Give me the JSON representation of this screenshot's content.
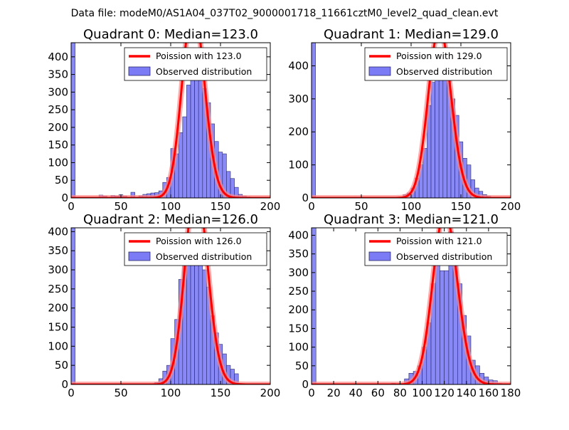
{
  "suptitle": "Data file: modeM0/AS1A04_037T02_9000001718_11661cztM0_level2_quad_clean.evt",
  "colors": {
    "bars": "#7b7bf5",
    "bar_edge": "#2a2a6e",
    "poisson": "#ff0000",
    "poisson_shadow": "#ff8a8a"
  },
  "chart_data": [
    {
      "type": "bar",
      "title": "Quadrant 0: Median=123.0",
      "xlim": [
        0,
        200
      ],
      "ylim": [
        0,
        440
      ],
      "xticks": [
        0,
        50,
        100,
        150,
        200
      ],
      "yticks": [
        0,
        50,
        100,
        150,
        200,
        250,
        300,
        350,
        400
      ],
      "legend_position": "top-right",
      "line_label": "Poission with 123.0",
      "bar_label": "Observed distribution",
      "median": 123.0,
      "bin_width": 4,
      "bins": [
        [
          0,
          440
        ],
        [
          28,
          8
        ],
        [
          32,
          5
        ],
        [
          40,
          7
        ],
        [
          44,
          5
        ],
        [
          48,
          9
        ],
        [
          52,
          5
        ],
        [
          60,
          16
        ],
        [
          68,
          6
        ],
        [
          72,
          10
        ],
        [
          76,
          12
        ],
        [
          80,
          14
        ],
        [
          84,
          15
        ],
        [
          88,
          20
        ],
        [
          92,
          44
        ],
        [
          96,
          58
        ],
        [
          100,
          140
        ],
        [
          104,
          125
        ],
        [
          108,
          185
        ],
        [
          112,
          230
        ],
        [
          116,
          320
        ],
        [
          120,
          390
        ],
        [
          124,
          410
        ],
        [
          128,
          370
        ],
        [
          132,
          310
        ],
        [
          136,
          270
        ],
        [
          140,
          210
        ],
        [
          144,
          160
        ],
        [
          148,
          130
        ],
        [
          152,
          125
        ],
        [
          156,
          75
        ],
        [
          160,
          55
        ],
        [
          164,
          30
        ],
        [
          168,
          10
        ],
        [
          172,
          5
        ],
        [
          176,
          3
        ],
        [
          180,
          2
        ]
      ]
    },
    {
      "type": "bar",
      "title": "Quadrant 1: Median=129.0",
      "xlim": [
        0,
        200
      ],
      "ylim": [
        0,
        470
      ],
      "xticks": [
        0,
        50,
        100,
        150,
        200
      ],
      "yticks": [
        0,
        100,
        200,
        300,
        400
      ],
      "legend_position": "top-right",
      "line_label": "Poission with 129.0",
      "bar_label": "Observed distribution",
      "median": 129.0,
      "bin_width": 4,
      "bins": [
        [
          0,
          470
        ],
        [
          88,
          3
        ],
        [
          92,
          10
        ],
        [
          96,
          15
        ],
        [
          100,
          30
        ],
        [
          104,
          60
        ],
        [
          108,
          100
        ],
        [
          112,
          150
        ],
        [
          116,
          280
        ],
        [
          120,
          350
        ],
        [
          124,
          400
        ],
        [
          128,
          430
        ],
        [
          132,
          410
        ],
        [
          136,
          380
        ],
        [
          140,
          300
        ],
        [
          144,
          250
        ],
        [
          148,
          170
        ],
        [
          152,
          120
        ],
        [
          156,
          100
        ],
        [
          160,
          55
        ],
        [
          164,
          30
        ],
        [
          168,
          20
        ],
        [
          172,
          10
        ],
        [
          176,
          5
        ]
      ]
    },
    {
      "type": "bar",
      "title": "Quadrant 2: Median=126.0",
      "xlim": [
        0,
        200
      ],
      "ylim": [
        0,
        410
      ],
      "xticks": [
        0,
        50,
        100,
        150,
        200
      ],
      "yticks": [
        0,
        50,
        100,
        150,
        200,
        250,
        300,
        350,
        400
      ],
      "legend_position": "top-right",
      "line_label": "Poission with 126.0",
      "bar_label": "Observed distribution",
      "median": 126.0,
      "bin_width": 4,
      "bins": [
        [
          0,
          410
        ],
        [
          84,
          5
        ],
        [
          88,
          15
        ],
        [
          92,
          35
        ],
        [
          96,
          50
        ],
        [
          100,
          120
        ],
        [
          104,
          170
        ],
        [
          108,
          275
        ],
        [
          112,
          345
        ],
        [
          116,
          380
        ],
        [
          120,
          390
        ],
        [
          124,
          370
        ],
        [
          128,
          340
        ],
        [
          132,
          300
        ],
        [
          136,
          255
        ],
        [
          140,
          180
        ],
        [
          144,
          135
        ],
        [
          148,
          105
        ],
        [
          152,
          80
        ],
        [
          156,
          50
        ],
        [
          160,
          40
        ],
        [
          164,
          28
        ],
        [
          168,
          3
        ]
      ]
    },
    {
      "type": "bar",
      "title": "Quadrant 3: Median=121.0",
      "xlim": [
        0,
        180
      ],
      "ylim": [
        0,
        420
      ],
      "xticks": [
        0,
        20,
        40,
        60,
        80,
        100,
        120,
        140,
        160,
        180
      ],
      "yticks": [
        0,
        50,
        100,
        150,
        200,
        250,
        300,
        350,
        400
      ],
      "legend_position": "top-right",
      "line_label": "Poission with 121.0",
      "bar_label": "Observed distribution",
      "median": 121.0,
      "bin_width": 4,
      "bins": [
        [
          0,
          420
        ],
        [
          72,
          3
        ],
        [
          84,
          15
        ],
        [
          88,
          30
        ],
        [
          92,
          35
        ],
        [
          96,
          50
        ],
        [
          100,
          100
        ],
        [
          104,
          165
        ],
        [
          108,
          270
        ],
        [
          112,
          355
        ],
        [
          116,
          305
        ],
        [
          120,
          305
        ],
        [
          124,
          410
        ],
        [
          128,
          365
        ],
        [
          132,
          270
        ],
        [
          136,
          185
        ],
        [
          140,
          130
        ],
        [
          144,
          65
        ],
        [
          148,
          50
        ],
        [
          152,
          30
        ],
        [
          156,
          20
        ],
        [
          160,
          12
        ],
        [
          164,
          10
        ],
        [
          168,
          3
        ]
      ]
    }
  ]
}
